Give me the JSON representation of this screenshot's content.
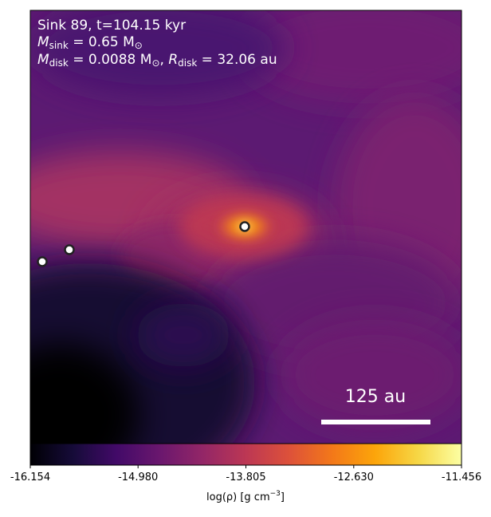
{
  "chart_data": {
    "type": "heatmap",
    "annotation": {
      "line1": "Sink 89, t=104.15 kyr",
      "line2_label": "M",
      "line2_sub": "sink",
      "line2_rest": " = 0.65 M",
      "line2_unit_sub": "⊙",
      "line3_label": "M",
      "line3_sub": "disk",
      "line3_rest": " = 0.0088 M",
      "line3_unit_sub": "⊙",
      "line3_sep": ", ",
      "line3_r_label": "R",
      "line3_r_sub": "disk",
      "line3_r_rest": " = 32.06 au"
    },
    "scalebar": {
      "label": "125 au"
    },
    "colorbar": {
      "colormap": "inferno",
      "range": [
        -16.154,
        -11.456
      ],
      "ticks": [
        "-16.154",
        "-14.980",
        "-13.805",
        "-12.630",
        "-11.456"
      ],
      "label_main": "log(ρ) [g cm",
      "label_sup": "−3",
      "label_end": "]"
    },
    "sinks": [
      {
        "id": "central"
      },
      {
        "id": "left-1"
      },
      {
        "id": "left-2"
      }
    ]
  }
}
